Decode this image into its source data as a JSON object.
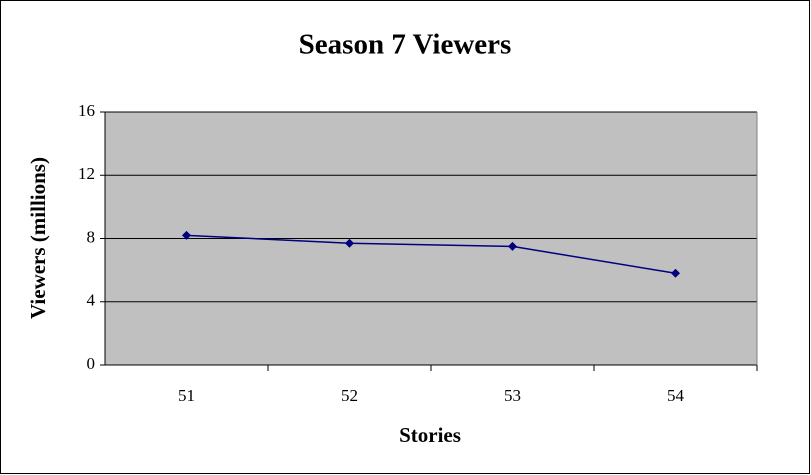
{
  "chart_data": {
    "type": "line",
    "title": "Season 7 Viewers",
    "x_label": "Stories",
    "y_label": "Viewers (millions)",
    "categories": [
      "51",
      "52",
      "53",
      "54"
    ],
    "values": [
      8.2,
      7.7,
      7.5,
      5.8
    ],
    "color": "#000080",
    "ylim": [
      0,
      16
    ],
    "yticks": [
      0,
      4,
      8,
      12,
      16
    ],
    "grid": true
  }
}
